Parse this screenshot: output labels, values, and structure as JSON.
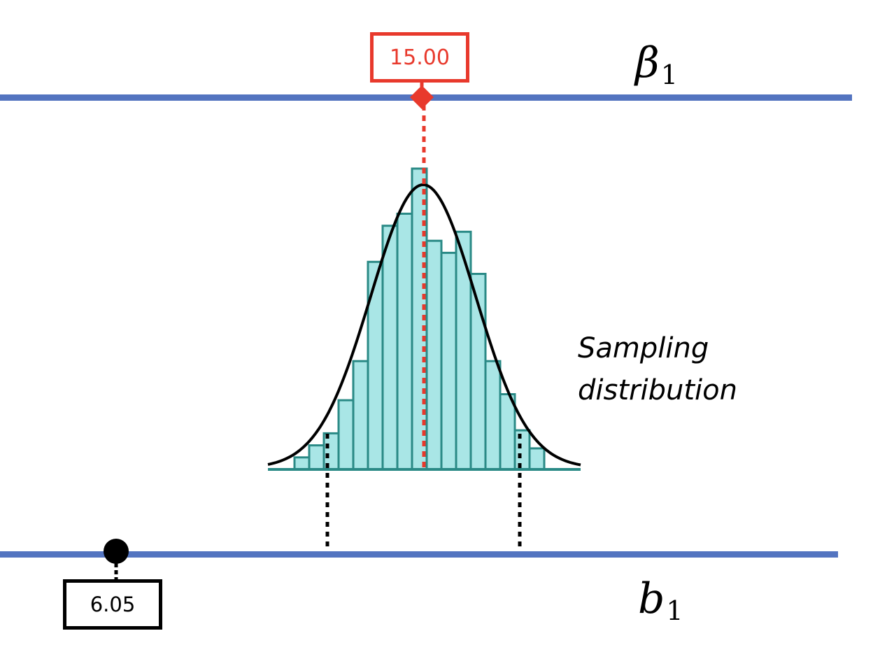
{
  "colors": {
    "axis": "#5374c0",
    "parameter": "#e8392c",
    "estimate": "#000000",
    "bar_fill": "#a9e6e6",
    "bar_stroke": "#2a8a86",
    "curve": "#000000"
  },
  "parameter_axis": {
    "symbol": "β",
    "subscript": "1",
    "value_label": "15.00",
    "marker": "diamond"
  },
  "estimate_axis": {
    "symbol": "b",
    "subscript": "1",
    "value_label": "6.05",
    "marker": "circle"
  },
  "distribution": {
    "label_line1": "Sampling",
    "label_line2": "distribution"
  },
  "chart_data": {
    "type": "bar",
    "center_value": 15.0,
    "estimate_value": 6.05,
    "bin_heights": [
      0.04,
      0.08,
      0.12,
      0.23,
      0.36,
      0.69,
      0.81,
      0.85,
      1.0,
      0.76,
      0.72,
      0.79,
      0.65,
      0.36,
      0.25,
      0.13,
      0.07
    ],
    "curve": "normal",
    "critical_bounds": "two-sided"
  }
}
